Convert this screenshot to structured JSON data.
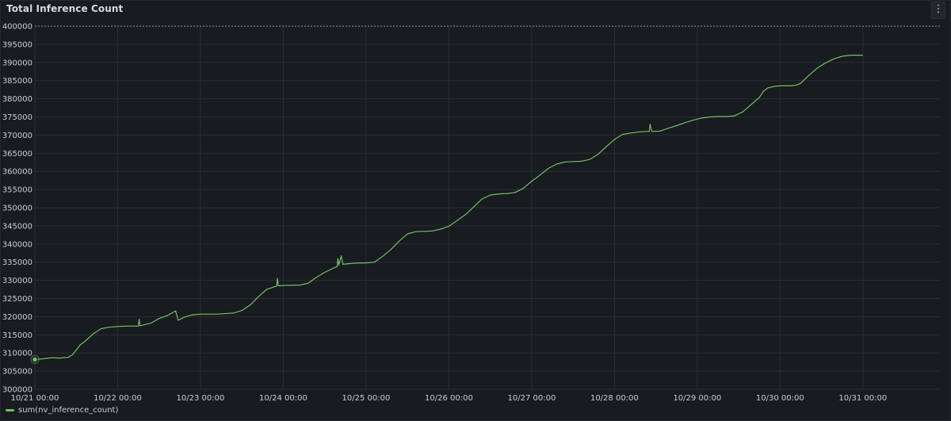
{
  "panel": {
    "title": "Total Inference Count",
    "menu_icon": "kebab-menu-icon"
  },
  "colors": {
    "background": "#181b1f",
    "series": "#73bf69",
    "grid": "#2b2e33",
    "text": "#ccccdc"
  },
  "chart_data": {
    "type": "line",
    "title": "Total Inference Count",
    "xlabel": "",
    "ylabel": "",
    "ylim": [
      300000,
      400000
    ],
    "xlim_days": [
      21,
      31.93
    ],
    "y_ticks": [
      "300000",
      "305000",
      "310000",
      "315000",
      "320000",
      "325000",
      "330000",
      "335000",
      "340000",
      "345000",
      "350000",
      "355000",
      "360000",
      "365000",
      "370000",
      "375000",
      "380000",
      "385000",
      "390000",
      "395000",
      "400000"
    ],
    "x_ticks": [
      {
        "day": 21,
        "label": "10/21 00:00"
      },
      {
        "day": 22,
        "label": "10/22 00:00"
      },
      {
        "day": 23,
        "label": "10/23 00:00"
      },
      {
        "day": 24,
        "label": "10/24 00:00"
      },
      {
        "day": 25,
        "label": "10/25 00:00"
      },
      {
        "day": 26,
        "label": "10/26 00:00"
      },
      {
        "day": 27,
        "label": "10/27 00:00"
      },
      {
        "day": 28,
        "label": "10/28 00:00"
      },
      {
        "day": 29,
        "label": "10/29 00:00"
      },
      {
        "day": 30,
        "label": "10/30 00:00"
      },
      {
        "day": 31,
        "label": "10/31 00:00"
      }
    ],
    "grid": true,
    "legend_placement": "bottom-left",
    "series": [
      {
        "name": "sum(nv_inference_count)",
        "color": "#73bf69",
        "points": [
          [
            21.0,
            308200
          ],
          [
            21.1,
            308400
          ],
          [
            21.2,
            308700
          ],
          [
            21.3,
            308600
          ],
          [
            21.4,
            308800
          ],
          [
            21.45,
            309400
          ],
          [
            21.5,
            310800
          ],
          [
            21.55,
            312300
          ],
          [
            21.6,
            313100
          ],
          [
            21.7,
            315200
          ],
          [
            21.8,
            316700
          ],
          [
            21.9,
            317100
          ],
          [
            22.0,
            317300
          ],
          [
            22.1,
            317400
          ],
          [
            22.2,
            317400
          ],
          [
            22.25,
            317400
          ],
          [
            22.26,
            319300
          ],
          [
            22.27,
            317500
          ],
          [
            22.4,
            318200
          ],
          [
            22.5,
            319500
          ],
          [
            22.6,
            320300
          ],
          [
            22.7,
            321600
          ],
          [
            22.73,
            319000
          ],
          [
            22.8,
            319800
          ],
          [
            22.9,
            320500
          ],
          [
            23.0,
            320700
          ],
          [
            23.2,
            320700
          ],
          [
            23.4,
            321000
          ],
          [
            23.5,
            321700
          ],
          [
            23.6,
            323200
          ],
          [
            23.7,
            325500
          ],
          [
            23.8,
            327500
          ],
          [
            23.9,
            328300
          ],
          [
            23.92,
            328400
          ],
          [
            23.93,
            330600
          ],
          [
            23.94,
            328500
          ],
          [
            24.0,
            328600
          ],
          [
            24.2,
            328700
          ],
          [
            24.3,
            329200
          ],
          [
            24.4,
            330800
          ],
          [
            24.5,
            332200
          ],
          [
            24.6,
            333300
          ],
          [
            24.65,
            333800
          ],
          [
            24.66,
            336000
          ],
          [
            24.67,
            334200
          ],
          [
            24.7,
            336800
          ],
          [
            24.72,
            334400
          ],
          [
            24.8,
            334600
          ],
          [
            24.9,
            334800
          ],
          [
            25.0,
            334800
          ],
          [
            25.1,
            335000
          ],
          [
            25.2,
            336600
          ],
          [
            25.3,
            338500
          ],
          [
            25.4,
            340800
          ],
          [
            25.5,
            342800
          ],
          [
            25.6,
            343400
          ],
          [
            25.7,
            343500
          ],
          [
            25.8,
            343600
          ],
          [
            25.9,
            344100
          ],
          [
            26.0,
            344900
          ],
          [
            26.1,
            346500
          ],
          [
            26.2,
            348100
          ],
          [
            26.3,
            350200
          ],
          [
            26.4,
            352400
          ],
          [
            26.5,
            353500
          ],
          [
            26.6,
            353800
          ],
          [
            26.7,
            353900
          ],
          [
            26.8,
            354200
          ],
          [
            26.9,
            355400
          ],
          [
            27.0,
            357300
          ],
          [
            27.1,
            359000
          ],
          [
            27.2,
            360800
          ],
          [
            27.3,
            362000
          ],
          [
            27.4,
            362600
          ],
          [
            27.5,
            362700
          ],
          [
            27.6,
            362800
          ],
          [
            27.7,
            363300
          ],
          [
            27.8,
            364700
          ],
          [
            27.9,
            366800
          ],
          [
            28.0,
            368800
          ],
          [
            28.1,
            370200
          ],
          [
            28.2,
            370600
          ],
          [
            28.3,
            370900
          ],
          [
            28.4,
            371000
          ],
          [
            28.42,
            371000
          ],
          [
            28.43,
            373000
          ],
          [
            28.45,
            371000
          ],
          [
            28.55,
            371100
          ],
          [
            28.65,
            371900
          ],
          [
            28.75,
            372600
          ],
          [
            28.85,
            373400
          ],
          [
            28.95,
            374100
          ],
          [
            29.05,
            374700
          ],
          [
            29.15,
            375000
          ],
          [
            29.25,
            375100
          ],
          [
            29.35,
            375100
          ],
          [
            29.45,
            375300
          ],
          [
            29.55,
            376400
          ],
          [
            29.65,
            378400
          ],
          [
            29.75,
            380400
          ],
          [
            29.8,
            382100
          ],
          [
            29.85,
            383000
          ],
          [
            29.95,
            383500
          ],
          [
            30.05,
            383600
          ],
          [
            30.15,
            383600
          ],
          [
            30.2,
            383800
          ],
          [
            30.25,
            384300
          ],
          [
            30.35,
            386500
          ],
          [
            30.45,
            388500
          ],
          [
            30.55,
            389900
          ],
          [
            30.65,
            391000
          ],
          [
            30.75,
            391700
          ],
          [
            30.85,
            392000
          ],
          [
            31.0,
            392000
          ]
        ]
      }
    ]
  },
  "legend": {
    "items": [
      {
        "label": "sum(nv_inference_count)",
        "color": "#73bf69"
      }
    ]
  }
}
